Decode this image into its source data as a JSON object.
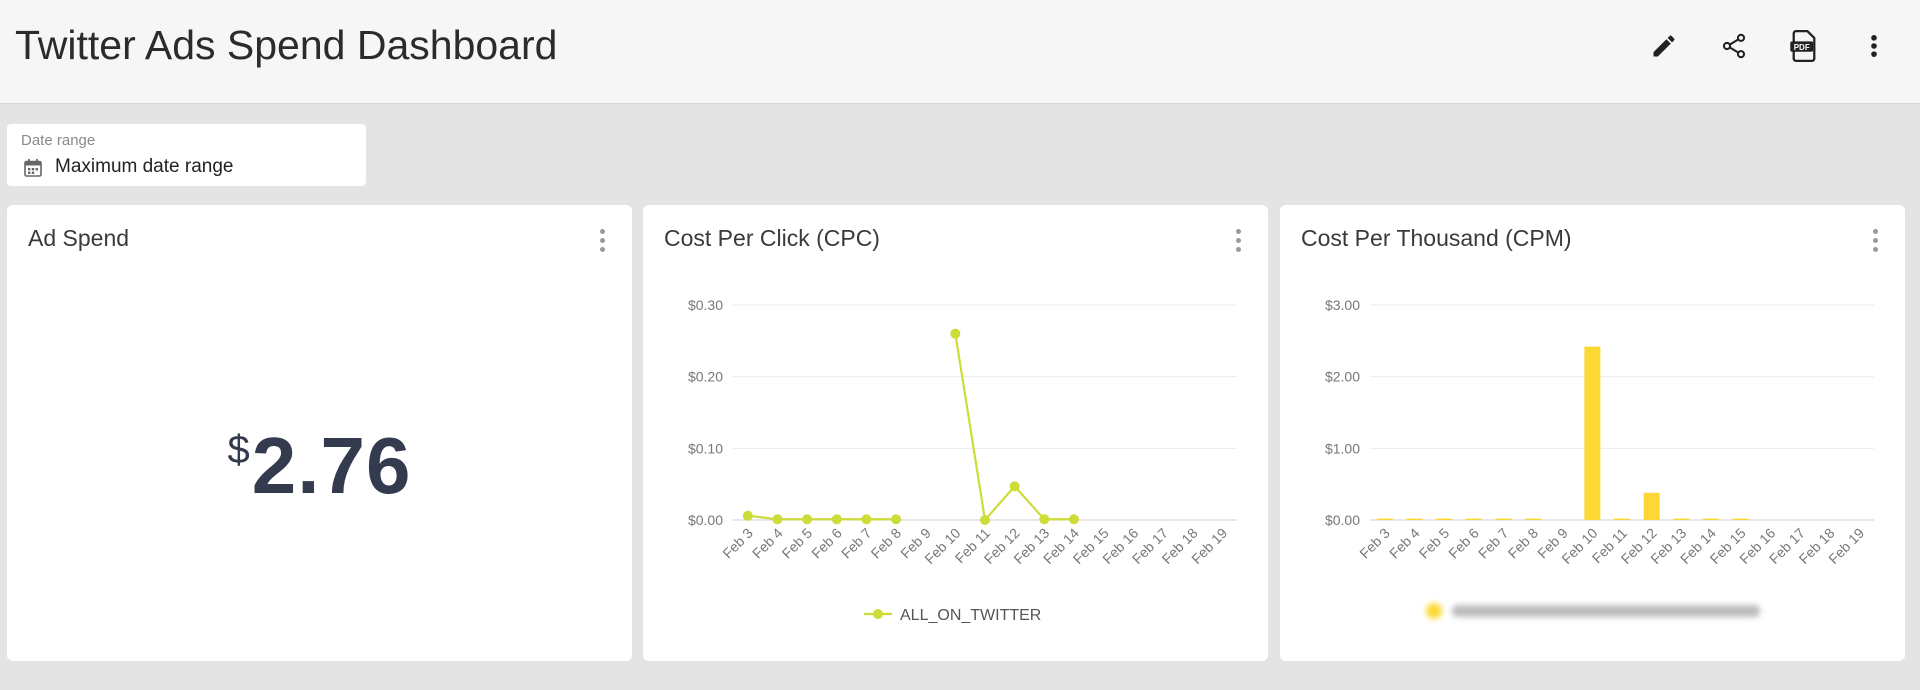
{
  "header": {
    "title": "Twitter Ads Spend Dashboard",
    "actions": [
      {
        "icon": "pencil-icon"
      },
      {
        "icon": "share-icon"
      },
      {
        "icon": "pdf-icon",
        "label": "PDF"
      },
      {
        "icon": "more-vertical-icon"
      }
    ]
  },
  "filters": {
    "date_range": {
      "label": "Date range",
      "value": "Maximum date range",
      "icon": "calendar-icon"
    }
  },
  "cards": {
    "ad_spend": {
      "title": "Ad Spend",
      "currency_symbol": "$",
      "value": "2.76"
    },
    "cpc": {
      "title": "Cost Per Click (CPC)"
    },
    "cpm": {
      "title": "Cost Per Thousand (CPM)"
    }
  },
  "chart_data": [
    {
      "type": "line",
      "title": "Cost Per Click (CPC)",
      "categories": [
        "Feb 3",
        "Feb 4",
        "Feb 5",
        "Feb 6",
        "Feb 7",
        "Feb 8",
        "Feb 9",
        "Feb 10",
        "Feb 11",
        "Feb 12",
        "Feb 13",
        "Feb 14",
        "Feb 15",
        "Feb 16",
        "Feb 17",
        "Feb 18",
        "Feb 19"
      ],
      "y_ticks": [
        "$0.00",
        "$0.10",
        "$0.20",
        "$0.30"
      ],
      "ylim": [
        0,
        0.3
      ],
      "grid": true,
      "legend_position": "bottom",
      "color": "#cddc39",
      "series": [
        {
          "name": "ALL_ON_TWITTER",
          "values": [
            0.006,
            0.001,
            0.001,
            0.001,
            0.001,
            0.001,
            null,
            0.26,
            0.0,
            0.047,
            0.001,
            0.001,
            null,
            null,
            null,
            null,
            null
          ]
        }
      ]
    },
    {
      "type": "bar",
      "title": "Cost Per Thousand (CPM)",
      "categories": [
        "Feb 3",
        "Feb 4",
        "Feb 5",
        "Feb 6",
        "Feb 7",
        "Feb 8",
        "Feb 9",
        "Feb 10",
        "Feb 11",
        "Feb 12",
        "Feb 13",
        "Feb 14",
        "Feb 15",
        "Feb 16",
        "Feb 17",
        "Feb 18",
        "Feb 19"
      ],
      "y_ticks": [
        "$0.00",
        "$1.00",
        "$2.00",
        "$3.00"
      ],
      "ylim": [
        0,
        3
      ],
      "grid": true,
      "legend_position": "bottom",
      "legend_blurred": true,
      "color": "#fdd835",
      "series": [
        {
          "values": [
            0.02,
            0.02,
            0.02,
            0.02,
            0.02,
            0.02,
            0,
            2.42,
            0.02,
            0.38,
            0.02,
            0.02,
            0.02,
            0,
            0,
            0,
            0
          ]
        }
      ]
    }
  ]
}
